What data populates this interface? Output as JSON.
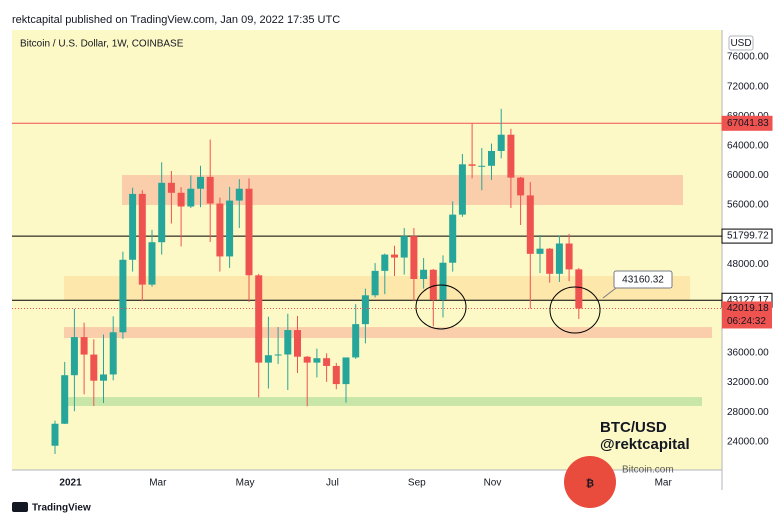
{
  "header": "rektcapital published on TradingView.com, Jan 09, 2022 17:35 UTC",
  "footer": "TradingView",
  "watermark": {
    "glyph": "₿",
    "text": "Bitcoin.com"
  },
  "chart_data": {
    "type": "candlestick",
    "title": "Bitcoin / U.S. Dollar, 1W, COINBASE",
    "currency": "USD",
    "up_color": "#26a69a",
    "down_color": "#ef5350",
    "open": [
      23470,
      26440,
      33000,
      38150,
      35790,
      32260,
      33100,
      38800,
      48600,
      57500,
      45240,
      50970,
      59000,
      57650,
      55800,
      58200,
      59800,
      56200,
      49050,
      56600,
      58200,
      46500,
      34700,
      35700,
      35800,
      39100,
      35500,
      34700,
      35300,
      34250,
      31800,
      35400,
      39900,
      43800,
      47100,
      49300,
      48900,
      51800,
      46000,
      47250,
      43200,
      48200,
      54700,
      61500,
      61300,
      61300,
      63300,
      65500,
      59700,
      57300,
      49400,
      50100,
      46700,
      50800,
      47300
    ],
    "high": [
      26870,
      34800,
      41950,
      40100,
      37850,
      38500,
      40950,
      49700,
      58350,
      58000,
      52640,
      61780,
      60600,
      58400,
      60000,
      61300,
      64850,
      57000,
      58450,
      59500,
      59600,
      46700,
      40900,
      39500,
      41300,
      41000,
      35600,
      36600,
      35950,
      34660,
      35400,
      42600,
      44700,
      48150,
      49450,
      50500,
      52900,
      52900,
      48850,
      47350,
      49200,
      56500,
      62900,
      67000,
      63700,
      64300,
      69000,
      66300,
      59800,
      59100,
      51950,
      50200,
      51900,
      52100,
      47500
    ],
    "low": [
      22350,
      26400,
      28130,
      30420,
      28850,
      29240,
      32300,
      37900,
      47000,
      43000,
      44950,
      49300,
      53500,
      50400,
      55600,
      55700,
      51000,
      47000,
      47500,
      52900,
      42900,
      30000,
      31200,
      34500,
      31000,
      33300,
      28800,
      32700,
      32100,
      31100,
      29300,
      35200,
      37300,
      43500,
      43950,
      46400,
      46600,
      43000,
      44700,
      39600,
      40800,
      47000,
      54400,
      59600,
      58000,
      59400,
      62300,
      55600,
      53300,
      42000,
      46800,
      45500,
      45600,
      45700,
      40600
    ],
    "close": [
      26440,
      33000,
      38150,
      35790,
      32260,
      33100,
      38800,
      48600,
      57500,
      45240,
      50970,
      59000,
      57650,
      55800,
      58200,
      59800,
      56200,
      49050,
      56600,
      58200,
      46500,
      34700,
      35700,
      35800,
      39100,
      35500,
      34700,
      35300,
      34250,
      31800,
      35400,
      39900,
      43800,
      47100,
      49300,
      48900,
      51800,
      46000,
      47250,
      43200,
      48200,
      54700,
      61500,
      61300,
      61300,
      63300,
      65500,
      59700,
      57300,
      49400,
      50100,
      46700,
      50800,
      47300,
      42019.18
    ],
    "ylim": [
      20190,
      79650
    ],
    "yticks": [
      {
        "value": 76000,
        "label": "76000.00"
      },
      {
        "value": 72000,
        "label": "72000.00"
      },
      {
        "value": 68000,
        "label": "68000.00"
      },
      {
        "value": 64000,
        "label": "64000.00"
      },
      {
        "value": 60000,
        "label": "60000.00"
      },
      {
        "value": 56000,
        "label": "56000.00"
      },
      {
        "value": 48000,
        "label": "48000.00"
      },
      {
        "value": 36000,
        "label": "36000.00"
      },
      {
        "value": 32000,
        "label": "32000.00"
      },
      {
        "value": 28000,
        "label": "28000.00"
      },
      {
        "value": 24000,
        "label": "24000.00"
      }
    ],
    "xticks": [
      {
        "value": 1.6,
        "label": "2021"
      },
      {
        "value": 10.6,
        "label": "Mar"
      },
      {
        "value": 19.6,
        "label": "May"
      },
      {
        "value": 28.6,
        "label": "Jul"
      },
      {
        "value": 37.3,
        "label": "Sep"
      },
      {
        "value": 45.1,
        "label": "Nov"
      },
      {
        "value": 62.7,
        "label": "Mar"
      }
    ],
    "grid": false,
    "zones": [
      {
        "low": 56000,
        "high": 60050,
        "color": "#f9c6a6"
      },
      {
        "low": 43160,
        "high": 46400,
        "color": "#fde4a6"
      },
      {
        "low": 38030,
        "high": 39500,
        "color": "#f9c6a6"
      },
      {
        "low": 28840,
        "high": 30050,
        "color": "#bfe3a3"
      }
    ],
    "price_lines": [
      {
        "value": 67041.83,
        "color": "#ef5350",
        "style": "solid"
      },
      {
        "value": 51799.72,
        "color": "#000000",
        "style": "solid"
      },
      {
        "value": 43127.17,
        "color": "#000000",
        "style": "solid"
      }
    ],
    "last_price_color": "#ef5350",
    "countdown": "06:24:32",
    "callout": 43160.32,
    "annotations": [
      "BTC/USD",
      "@rektcapital"
    ]
  }
}
